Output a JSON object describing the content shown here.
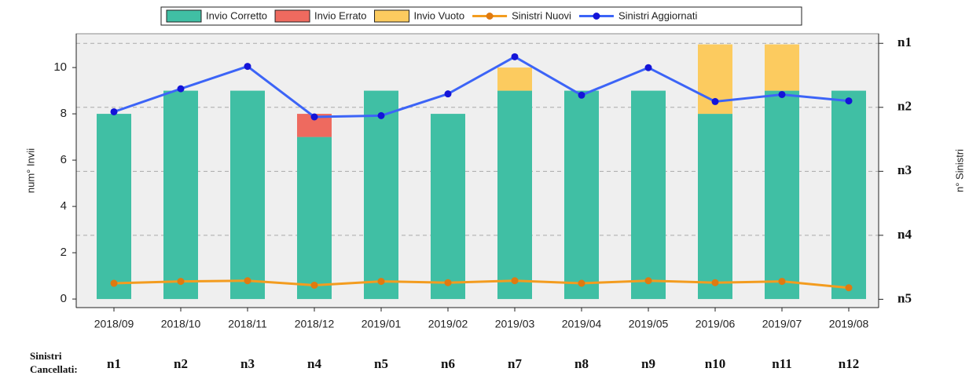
{
  "chart_data": {
    "type": "bar",
    "categories": [
      "2018/09",
      "2018/10",
      "2018/11",
      "2018/12",
      "2019/01",
      "2019/02",
      "2019/03",
      "2019/04",
      "2019/05",
      "2019/06",
      "2019/07",
      "2019/08"
    ],
    "series": [
      {
        "name": "Invio Corretto",
        "color": "#40bfa4",
        "type": "bar",
        "values": [
          8,
          9,
          9,
          7,
          9,
          8,
          9,
          9,
          9,
          8,
          9,
          9
        ]
      },
      {
        "name": "Invio Errato",
        "color": "#ee6a5f",
        "type": "bar",
        "values": [
          0,
          0,
          0,
          1,
          0,
          0,
          0,
          0,
          0,
          0,
          0,
          0
        ]
      },
      {
        "name": "Invio Vuoto",
        "color": "#fccb5f",
        "type": "bar",
        "values": [
          0,
          0,
          0,
          0,
          0,
          0,
          1,
          0,
          0,
          3,
          2,
          0
        ]
      },
      {
        "name": "Sinistri Nuovi",
        "color": "#f39c1f",
        "marker_color": "#e07a10",
        "type": "line",
        "axis": "y2",
        "values": [
          0.25,
          0.28,
          0.29,
          0.22,
          0.28,
          0.26,
          0.29,
          0.25,
          0.29,
          0.26,
          0.28,
          0.18
        ]
      },
      {
        "name": "Sinistri Aggiornati",
        "color": "#3c64f7",
        "marker_color": "#1414d8",
        "type": "line",
        "axis": "y2",
        "values": [
          2.93,
          3.29,
          3.64,
          2.85,
          2.87,
          3.21,
          3.79,
          3.19,
          3.62,
          3.09,
          3.2,
          3.1
        ]
      }
    ],
    "ylabel": "num° Invii",
    "y2label": "n° Sinistri",
    "ylim": [
      -0.37,
      11.46
    ],
    "yticks": [
      0,
      2,
      4,
      6,
      8,
      10
    ],
    "y2lim": [
      -0.13,
      4.15
    ],
    "y2ticks": [
      {
        "value": 0,
        "label": "n5"
      },
      {
        "value": 1,
        "label": "n4"
      },
      {
        "value": 2,
        "label": "n3"
      },
      {
        "value": 3,
        "label": "n2"
      },
      {
        "value": 4,
        "label": "n1"
      }
    ],
    "grid": true,
    "legend": "top",
    "footer": {
      "label": [
        "Sinistri",
        "Cancellati:"
      ],
      "values": [
        "n1",
        "n2",
        "n3",
        "n4",
        "n5",
        "n6",
        "n7",
        "n8",
        "n9",
        "n10",
        "n11",
        "n12"
      ]
    }
  }
}
